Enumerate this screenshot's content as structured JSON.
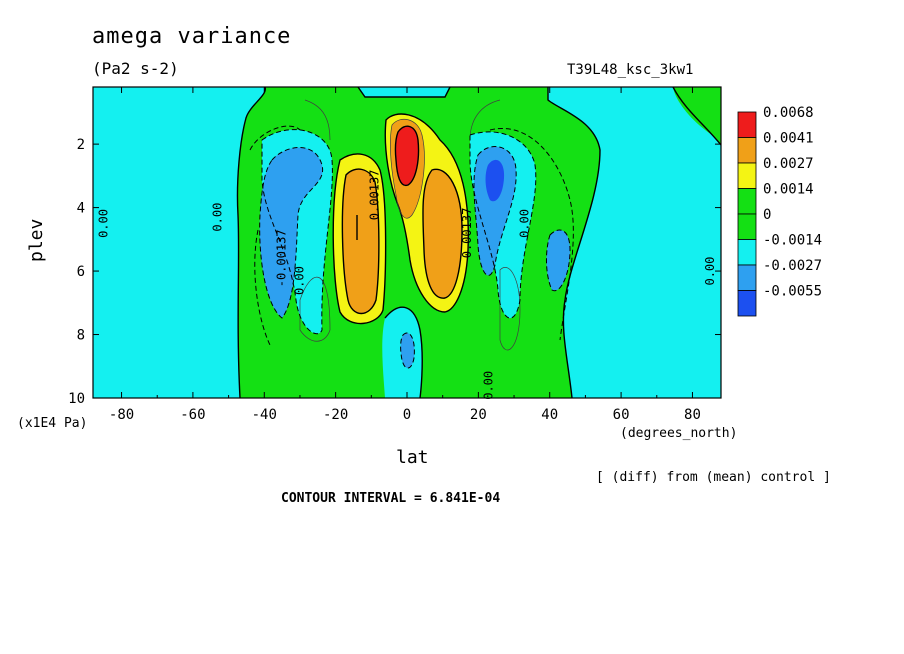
{
  "title": "amega variance",
  "units": "(Pa2 s-2)",
  "run_label": "T39L48_ksc_3kw1",
  "z_units": "(x1E4 Pa)",
  "x_units": "(degrees_north)",
  "x_label": "lat",
  "y_label": "plev",
  "diff_note": "[ (diff) from (mean) control ]",
  "contour_interval": "CONTOUR INTERVAL = 6.841E-04",
  "chart_data": {
    "type": "contour",
    "title": "amega variance",
    "xlabel": "lat",
    "ylabel": "plev",
    "xlim": [
      -88,
      88
    ],
    "ylim": [
      10,
      0.2
    ],
    "x_ticks": [
      -80,
      -60,
      -40,
      -20,
      0,
      20,
      40,
      60,
      80
    ],
    "x_tick_labels": [
      "-80",
      "-60",
      "-40",
      "-20",
      "0",
      "20",
      "40",
      "60",
      "80"
    ],
    "y_ticks": [
      2,
      4,
      6,
      8,
      10
    ],
    "y_tick_labels": [
      "2",
      "4",
      "6",
      "8",
      "10"
    ],
    "colorbar": {
      "labels": [
        "0.0068",
        "0.0041",
        "0.0027",
        "0.0014",
        "0",
        "-0.0014",
        "-0.0027",
        "-0.0055"
      ],
      "colors": [
        "#ee1c1c",
        "#f0a018",
        "#f4f414",
        "#14e014",
        "#14e014",
        "#14f0f0",
        "#2ea0f0",
        "#1c50f0"
      ]
    },
    "contour_labels": [
      {
        "text": "0.00",
        "x": -84,
        "y": 4.5
      },
      {
        "text": "0.00",
        "x": -52,
        "y": 4.3
      },
      {
        "text": "-0.00137",
        "x": -34,
        "y": 5.6
      },
      {
        "text": "0.00",
        "x": -29,
        "y": 6.3
      },
      {
        "text": "0.00137",
        "x": -8,
        "y": 3.6
      },
      {
        "text": "0.00137",
        "x": 18,
        "y": 4.8
      },
      {
        "text": "0.00",
        "x": 34,
        "y": 4.5
      },
      {
        "text": "0.00",
        "x": 24,
        "y": 9.6
      },
      {
        "text": "0.00",
        "x": 86,
        "y": 6.0
      }
    ],
    "features": [
      {
        "kind": "max",
        "x": 0,
        "y": 2.6,
        "value": 0.0068
      },
      {
        "kind": "max",
        "x": -14,
        "y": 4.5,
        "value": 0.0041
      },
      {
        "kind": "max",
        "x": 13,
        "y": 4.5,
        "value": 0.0041
      },
      {
        "kind": "min",
        "x": -30,
        "y": 4.6,
        "value": -0.0027
      },
      {
        "kind": "min",
        "x": 25,
        "y": 3.2,
        "value": -0.0055
      },
      {
        "kind": "min",
        "x": 42,
        "y": 5.5,
        "value": -0.0027
      },
      {
        "kind": "min",
        "x": 0,
        "y": 8.5,
        "value": -0.0027
      }
    ]
  }
}
